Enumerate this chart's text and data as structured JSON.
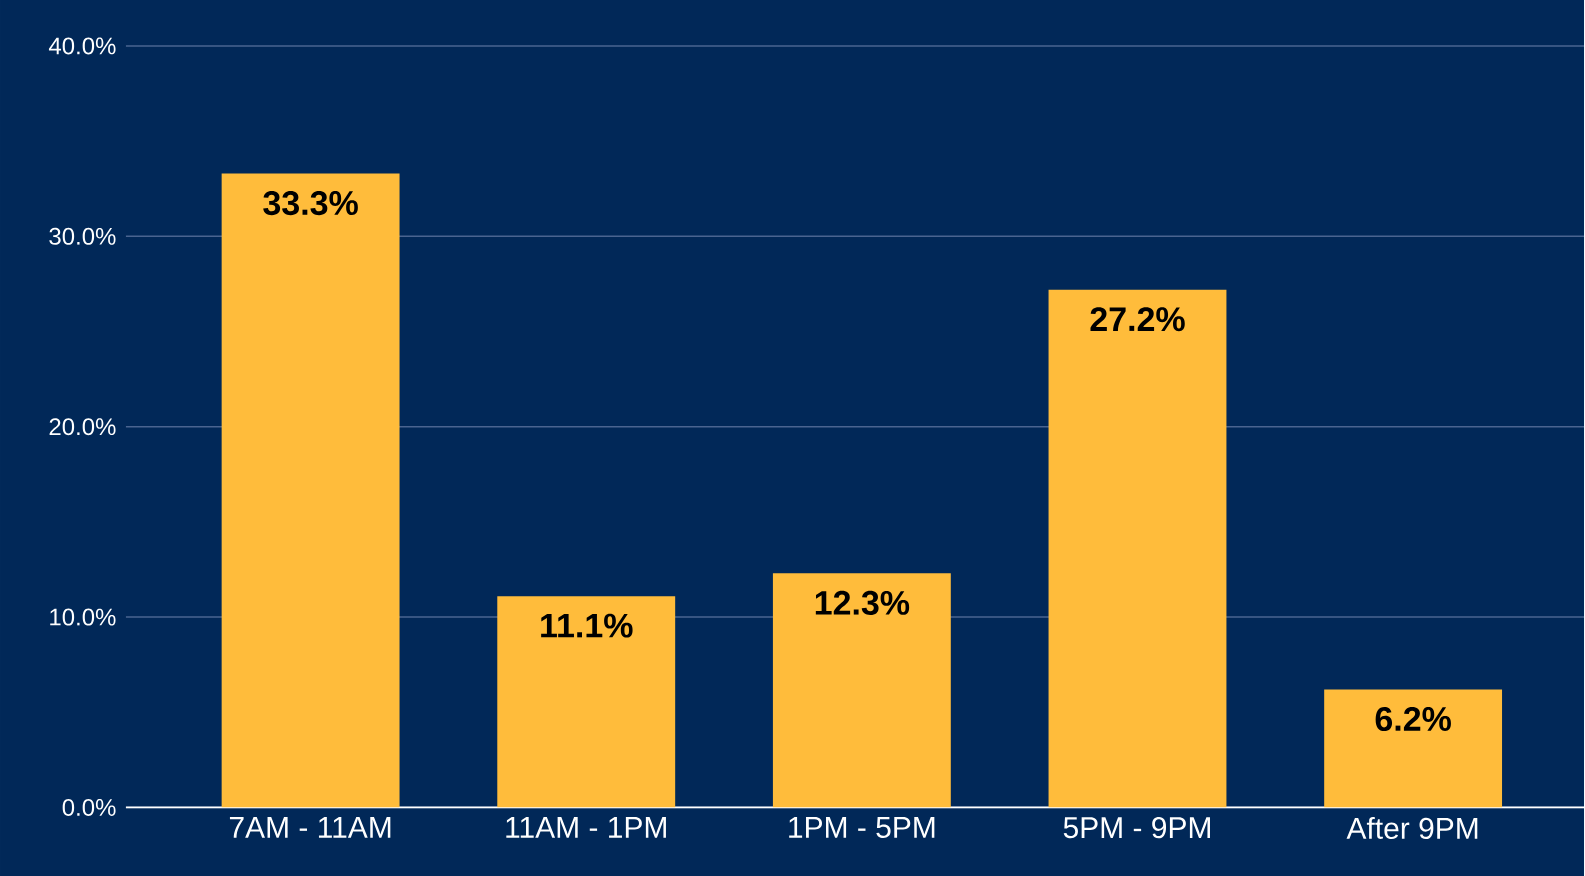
{
  "chart_data": {
    "type": "bar",
    "categories": [
      "7AM - 11AM",
      "11AM - 1PM",
      "1PM - 5PM",
      "5PM - 9PM",
      "After 9PM"
    ],
    "values": [
      33.3,
      11.1,
      12.3,
      27.2,
      6.2
    ],
    "value_labels": [
      "33.3%",
      "11.1%",
      "12.3%",
      "27.2%",
      "6.2%"
    ],
    "color": "#ffbc3b",
    "ylim": [
      0,
      40
    ],
    "yticks": [
      {
        "value": 0,
        "label": "0.0%"
      },
      {
        "value": 10,
        "label": "10.0%"
      },
      {
        "value": 20,
        "label": "20.0%"
      },
      {
        "value": 30,
        "label": "30.0%"
      },
      {
        "value": 40,
        "label": "40.0%"
      }
    ],
    "grid": "y"
  }
}
